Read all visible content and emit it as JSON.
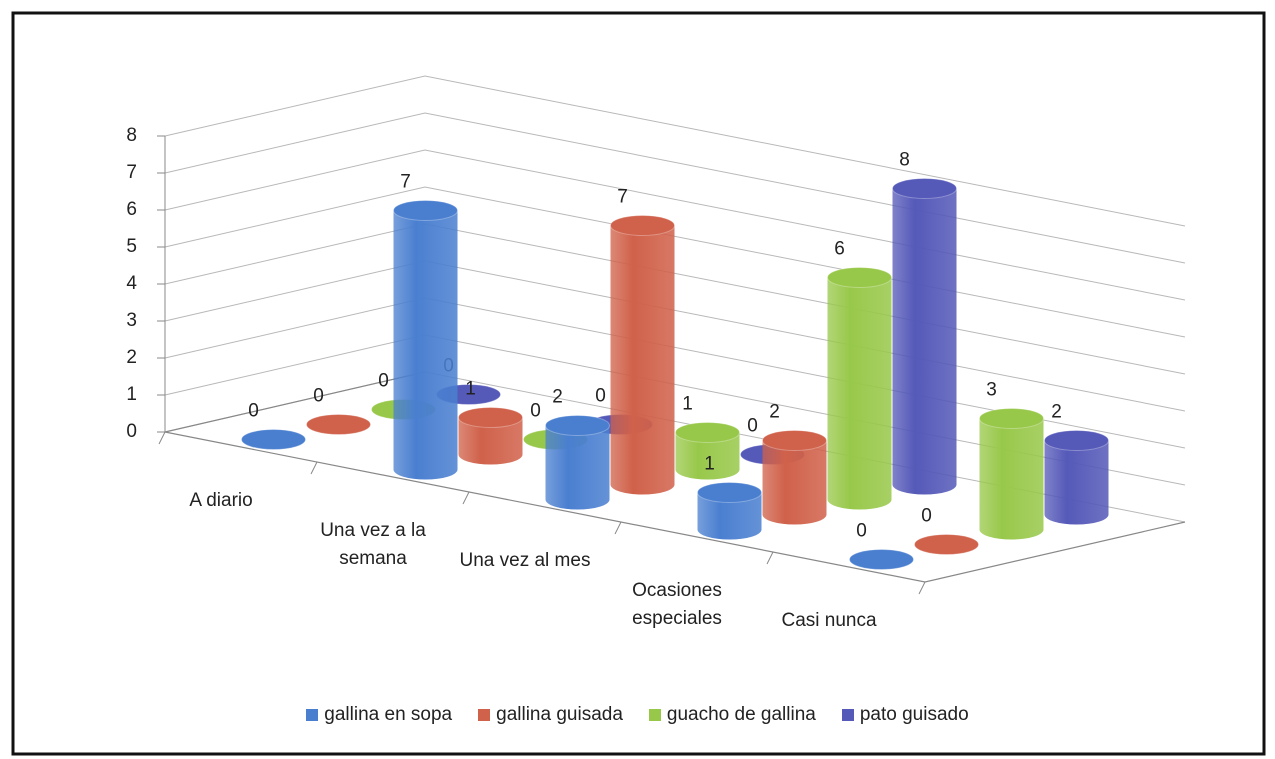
{
  "chart_data": {
    "type": "bar3d",
    "categories": [
      "A diario",
      "Una vez a la semana",
      "Una vez al mes",
      "Ocasiones especiales",
      "Casi nunca"
    ],
    "series": [
      {
        "name": "gallina en sopa",
        "color": "#4a7fd0",
        "values": [
          0,
          7,
          2,
          1,
          0
        ]
      },
      {
        "name": "gallina guisada",
        "color": "#d0614a",
        "values": [
          0,
          1,
          7,
          2,
          0
        ]
      },
      {
        "name": "guacho de gallina",
        "color": "#98c84a",
        "values": [
          0,
          0,
          1,
          6,
          3
        ]
      },
      {
        "name": "pato guisado",
        "color": "#5559b8",
        "values": [
          0,
          0,
          0,
          8,
          2
        ]
      }
    ],
    "ylim": [
      0,
      8
    ],
    "yticks": [
      0,
      1,
      2,
      3,
      4,
      5,
      6,
      7,
      8
    ],
    "grid": true,
    "legend": "bottom"
  }
}
